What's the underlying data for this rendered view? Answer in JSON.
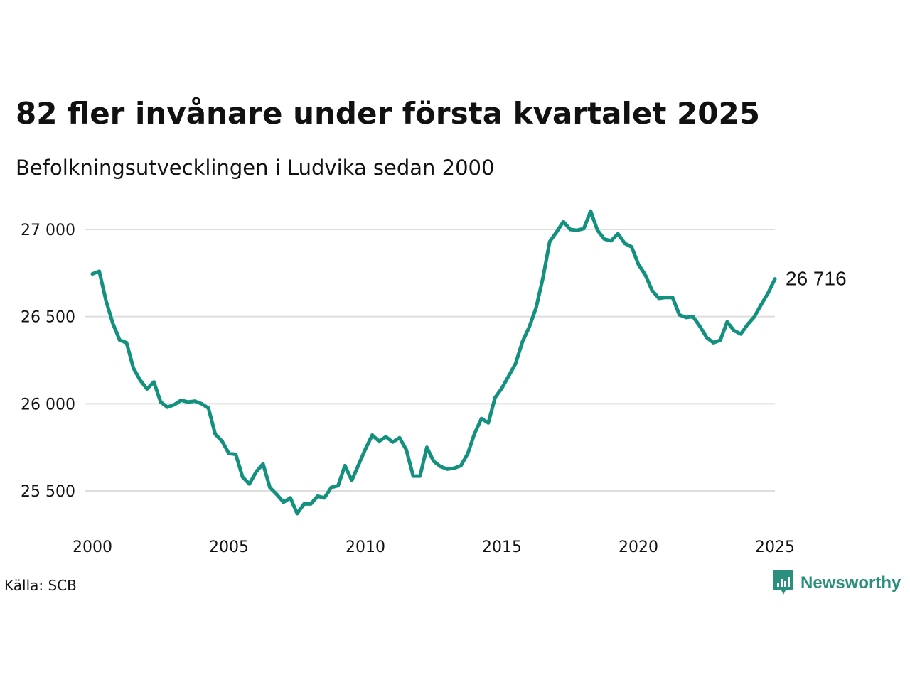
{
  "title": "82 fler invånare under första kvartalet 2025",
  "subtitle": "Befolkningsutvecklingen i Ludvika sedan 2000",
  "source": "Källa: SCB",
  "brand": {
    "name": "Newsworthy",
    "icon": "newsworthy-logo-icon",
    "color": "#2a8f7c"
  },
  "colors": {
    "line": "#14907f",
    "grid": "#dedede",
    "text": "#111111"
  },
  "chart_data": {
    "type": "line",
    "xlim": [
      2000,
      2025.25
    ],
    "ylim": [
      25350,
      27150
    ],
    "grid": "horizontal",
    "y_ticks": [
      25500,
      26000,
      26500,
      27000
    ],
    "y_tick_labels": [
      "25 500",
      "26 000",
      "26 500",
      "27 000"
    ],
    "x_ticks": [
      2000,
      2005,
      2010,
      2015,
      2020,
      2025
    ],
    "x_tick_labels": [
      "2000",
      "2005",
      "2010",
      "2015",
      "2020",
      "2025"
    ],
    "end_label": "26 716",
    "series": [
      {
        "x": [
          2000.0,
          2000.25,
          2000.5,
          2000.75,
          2001.0,
          2001.25,
          2001.5,
          2001.75,
          2002.0,
          2002.25,
          2002.5,
          2002.75,
          2003.0,
          2003.25,
          2003.5,
          2003.75,
          2004.0,
          2004.25,
          2004.5,
          2004.75,
          2005.0,
          2005.25,
          2005.5,
          2005.75,
          2006.0,
          2006.25,
          2006.5,
          2006.75,
          2007.0,
          2007.25,
          2007.5,
          2007.75,
          2008.0,
          2008.25,
          2008.5,
          2008.75,
          2009.0,
          2009.25,
          2009.5,
          2009.75,
          2010.0,
          2010.25,
          2010.5,
          2010.75,
          2011.0,
          2011.25,
          2011.5,
          2011.75,
          2012.0,
          2012.25,
          2012.5,
          2012.75,
          2013.0,
          2013.25,
          2013.5,
          2013.75,
          2014.0,
          2014.25,
          2014.5,
          2014.75,
          2015.0,
          2015.25,
          2015.5,
          2015.75,
          2016.0,
          2016.25,
          2016.5,
          2016.75,
          2017.0,
          2017.25,
          2017.5,
          2017.75,
          2018.0,
          2018.25,
          2018.5,
          2018.75,
          2019.0,
          2019.25,
          2019.5,
          2019.75,
          2020.0,
          2020.25,
          2020.5,
          2020.75,
          2021.0,
          2021.25,
          2021.5,
          2021.75,
          2022.0,
          2022.25,
          2022.5,
          2022.75,
          2023.0,
          2023.25,
          2023.5,
          2023.75,
          2024.0,
          2024.25,
          2024.5,
          2024.75,
          2025.0
        ],
        "values": [
          26745,
          26760,
          26590,
          26460,
          26365,
          26350,
          26205,
          26135,
          26085,
          26125,
          26010,
          25980,
          25995,
          26020,
          26010,
          26015,
          26000,
          25975,
          25825,
          25785,
          25715,
          25710,
          25580,
          25540,
          25610,
          25655,
          25520,
          25480,
          25435,
          25460,
          25370,
          25425,
          25425,
          25470,
          25460,
          25520,
          25530,
          25645,
          25560,
          25650,
          25740,
          25820,
          25785,
          25810,
          25780,
          25805,
          25735,
          25585,
          25585,
          25750,
          25670,
          25640,
          25625,
          25630,
          25645,
          25715,
          25830,
          25915,
          25890,
          26035,
          26090,
          26160,
          26230,
          26355,
          26440,
          26550,
          26720,
          26930,
          26985,
          27045,
          27000,
          26995,
          27005,
          27105,
          26995,
          26945,
          26935,
          26975,
          26920,
          26900,
          26800,
          26740,
          26650,
          26605,
          26610,
          26610,
          26510,
          26495,
          26500,
          26445,
          26380,
          26350,
          26365,
          26470,
          26420,
          26400,
          26455,
          26500,
          26570,
          26635,
          26716
        ]
      }
    ]
  }
}
